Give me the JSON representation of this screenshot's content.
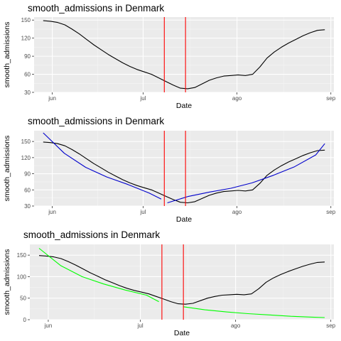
{
  "chart_data": [
    {
      "type": "line",
      "title": "smooth_admissions in Denmark",
      "xlabel": "Date",
      "ylabel": "smooth_admissions",
      "x_start": "2021-05-29",
      "x_end": "2021-08-30",
      "xlim": [
        "2021-05-26",
        "2021-09-02"
      ],
      "xticks": [
        {
          "date": "2021-06-01",
          "label": "jun"
        },
        {
          "date": "2021-07-01",
          "label": "jul"
        },
        {
          "date": "2021-08-01",
          "label": "ago"
        },
        {
          "date": "2021-09-01",
          "label": "sep"
        }
      ],
      "ylim": [
        30,
        155
      ],
      "yticks": [
        30,
        60,
        90,
        120,
        150
      ],
      "grid": true,
      "vlines": {
        "dates": [
          "2021-07-08",
          "2021-07-15"
        ],
        "color": "#ff0000"
      },
      "series": [
        {
          "color": "#000000",
          "values": [
            149,
            148,
            146,
            142,
            135,
            127,
            118,
            109,
            101,
            93,
            86,
            79,
            73,
            68,
            64,
            60,
            54,
            48,
            42,
            37,
            36,
            38,
            44,
            50,
            54,
            57,
            58,
            59,
            58,
            60,
            72,
            87,
            97,
            105,
            112,
            118,
            124,
            129,
            133,
            134
          ]
        }
      ]
    },
    {
      "type": "line",
      "title": "smooth_admissions in Denmark",
      "xlabel": "Date",
      "ylabel": "smooth_admissions",
      "x_start": "2021-05-29",
      "x_end": "2021-08-30",
      "xlim": [
        "2021-05-26",
        "2021-09-02"
      ],
      "xticks": [
        {
          "date": "2021-06-01",
          "label": "jun"
        },
        {
          "date": "2021-07-01",
          "label": "jul"
        },
        {
          "date": "2021-08-01",
          "label": "ago"
        },
        {
          "date": "2021-09-01",
          "label": "sep"
        }
      ],
      "ylim": [
        30,
        170
      ],
      "yticks": [
        30,
        60,
        90,
        120,
        150
      ],
      "grid": true,
      "vlines": {
        "dates": [
          "2021-07-08",
          "2021-07-15"
        ],
        "color": "#ff0000"
      },
      "series": [
        {
          "color": "#000000",
          "values": [
            149,
            148,
            146,
            142,
            135,
            127,
            118,
            109,
            101,
            93,
            86,
            79,
            73,
            68,
            64,
            60,
            54,
            48,
            42,
            37,
            36,
            38,
            44,
            50,
            54,
            57,
            58,
            59,
            58,
            60,
            72,
            87,
            97,
            105,
            112,
            118,
            124,
            129,
            133,
            134
          ]
        },
        {
          "color": "#0000cc",
          "segments": [
            {
              "dates": [
                "2021-05-29",
                "2021-06-05",
                "2021-06-12",
                "2021-06-19",
                "2021-06-26",
                "2021-07-03",
                "2021-07-07"
              ],
              "values": [
                166,
                128,
                102,
                84,
                70,
                54,
                43
              ]
            },
            {
              "dates": [
                "2021-07-09",
                "2021-07-16",
                "2021-07-23",
                "2021-07-30",
                "2021-08-06",
                "2021-08-13",
                "2021-08-20",
                "2021-08-27",
                "2021-08-30"
              ],
              "values": [
                36,
                48,
                56,
                63,
                73,
                87,
                103,
                125,
                146
              ]
            }
          ]
        }
      ]
    },
    {
      "type": "line",
      "title": "smooth_admissions in Denmark",
      "xlabel": "Date",
      "ylabel": "smooth_admissions",
      "x_start": "2021-05-29",
      "x_end": "2021-08-30",
      "xlim": [
        "2021-05-26",
        "2021-09-02"
      ],
      "xticks": [
        {
          "date": "2021-06-01",
          "label": "jun"
        },
        {
          "date": "2021-07-01",
          "label": "jul"
        },
        {
          "date": "2021-08-01",
          "label": "ago"
        },
        {
          "date": "2021-09-01",
          "label": "sep"
        }
      ],
      "ylim": [
        0,
        175
      ],
      "yticks": [
        0,
        50,
        100,
        150
      ],
      "grid": true,
      "vlines": {
        "dates": [
          "2021-07-08",
          "2021-07-15"
        ],
        "color": "#ff0000"
      },
      "series": [
        {
          "color": "#000000",
          "values": [
            149,
            148,
            146,
            142,
            135,
            127,
            118,
            109,
            101,
            93,
            86,
            79,
            73,
            68,
            64,
            60,
            54,
            48,
            42,
            37,
            36,
            38,
            44,
            50,
            54,
            57,
            58,
            59,
            58,
            60,
            72,
            87,
            97,
            105,
            112,
            118,
            124,
            129,
            133,
            134
          ]
        },
        {
          "color": "#00ff00",
          "segments": [
            {
              "dates": [
                "2021-05-29",
                "2021-06-05",
                "2021-06-12",
                "2021-06-19",
                "2021-06-26",
                "2021-07-03",
                "2021-07-07"
              ],
              "values": [
                166,
                126,
                100,
                83,
                69,
                57,
                42
              ]
            },
            {
              "dates": [
                "2021-07-15",
                "2021-07-22",
                "2021-07-29",
                "2021-08-05",
                "2021-08-12",
                "2021-08-19",
                "2021-08-26",
                "2021-08-30"
              ],
              "values": [
                30,
                23,
                18,
                14,
                11,
                8,
                6,
                5
              ]
            }
          ]
        }
      ]
    }
  ]
}
